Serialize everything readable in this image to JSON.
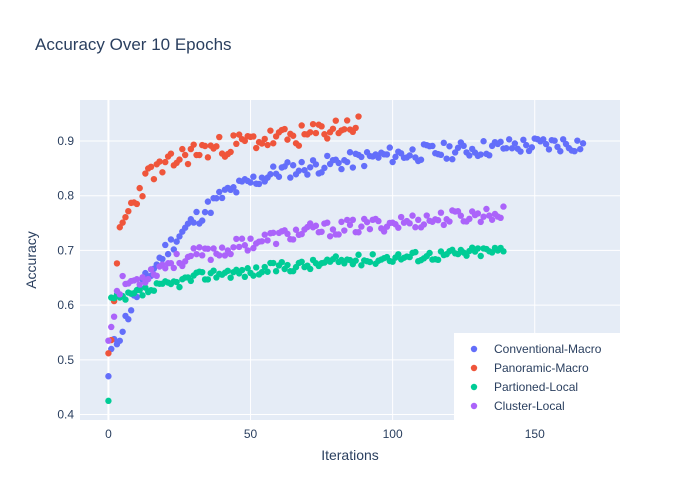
{
  "chart_data": {
    "type": "scatter",
    "title": "Accuracy Over 10 Epochs",
    "xlabel": "Iterations",
    "ylabel": "Accuracy",
    "xlim": [
      -10,
      180
    ],
    "ylim": [
      0.39,
      0.975
    ],
    "xticks": [
      0,
      50,
      100,
      150
    ],
    "yticks": [
      0.4,
      0.5,
      0.6,
      0.7,
      0.8,
      0.9
    ],
    "xtick_labels": [
      "0",
      "50",
      "100",
      "150"
    ],
    "ytick_labels": [
      "0.4",
      "0.5",
      "0.6",
      "0.7",
      "0.8",
      "0.9"
    ],
    "grid": true,
    "legend_position": "bottom-right",
    "series": [
      {
        "name": "Conventional-Macro",
        "color": "#636efa",
        "count": 170,
        "start": 0.47,
        "plateau": 0.895,
        "rate": 0.045,
        "noise": 0.008,
        "seed": 11,
        "anchors": [
          [
            0,
            0.47
          ],
          [
            1,
            0.515
          ],
          [
            3,
            0.535
          ],
          [
            5,
            0.56
          ],
          [
            10,
            0.62
          ],
          [
            20,
            0.7
          ],
          [
            30,
            0.755
          ],
          [
            40,
            0.8
          ],
          [
            50,
            0.825
          ],
          [
            60,
            0.845
          ],
          [
            80,
            0.86
          ],
          [
            100,
            0.875
          ],
          [
            120,
            0.882
          ],
          [
            140,
            0.89
          ],
          [
            160,
            0.895
          ],
          [
            167,
            0.895
          ]
        ]
      },
      {
        "name": "Panoramic-Macro",
        "color": "#ef553b",
        "count": 89,
        "start": 0.51,
        "plateau": 0.93,
        "rate": 0.09,
        "noise": 0.01,
        "seed": 23,
        "anchors": [
          [
            0,
            0.512
          ],
          [
            2,
            0.59
          ],
          [
            4,
            0.735
          ],
          [
            6,
            0.76
          ],
          [
            10,
            0.8
          ],
          [
            15,
            0.845
          ],
          [
            20,
            0.85
          ],
          [
            25,
            0.87
          ],
          [
            30,
            0.88
          ],
          [
            40,
            0.89
          ],
          [
            50,
            0.9
          ],
          [
            60,
            0.905
          ],
          [
            70,
            0.91
          ],
          [
            80,
            0.925
          ],
          [
            88,
            0.93
          ]
        ]
      },
      {
        "name": "Partioned-Local",
        "color": "#00cc96",
        "count": 140,
        "start": 0.425,
        "plateau": 0.7,
        "rate": 0.05,
        "noise": 0.005,
        "seed": 37,
        "anchors": [
          [
            0,
            0.425
          ],
          [
            1,
            0.61
          ],
          [
            5,
            0.61
          ],
          [
            10,
            0.62
          ],
          [
            20,
            0.635
          ],
          [
            30,
            0.65
          ],
          [
            40,
            0.66
          ],
          [
            50,
            0.66
          ],
          [
            60,
            0.67
          ],
          [
            70,
            0.673
          ],
          [
            80,
            0.68
          ],
          [
            90,
            0.683
          ],
          [
            100,
            0.688
          ],
          [
            110,
            0.69
          ],
          [
            120,
            0.693
          ],
          [
            130,
            0.698
          ],
          [
            139,
            0.7
          ]
        ]
      },
      {
        "name": "Cluster-Local",
        "color": "#ab63fa",
        "count": 140,
        "start": 0.535,
        "plateau": 0.77,
        "rate": 0.04,
        "noise": 0.007,
        "seed": 53,
        "anchors": [
          [
            0,
            0.535
          ],
          [
            1,
            0.565
          ],
          [
            3,
            0.62
          ],
          [
            5,
            0.64
          ],
          [
            10,
            0.645
          ],
          [
            15,
            0.66
          ],
          [
            20,
            0.675
          ],
          [
            30,
            0.69
          ],
          [
            40,
            0.7
          ],
          [
            50,
            0.715
          ],
          [
            60,
            0.725
          ],
          [
            70,
            0.735
          ],
          [
            80,
            0.74
          ],
          [
            90,
            0.745
          ],
          [
            100,
            0.75
          ],
          [
            110,
            0.755
          ],
          [
            120,
            0.76
          ],
          [
            130,
            0.765
          ],
          [
            139,
            0.767
          ]
        ]
      }
    ]
  }
}
